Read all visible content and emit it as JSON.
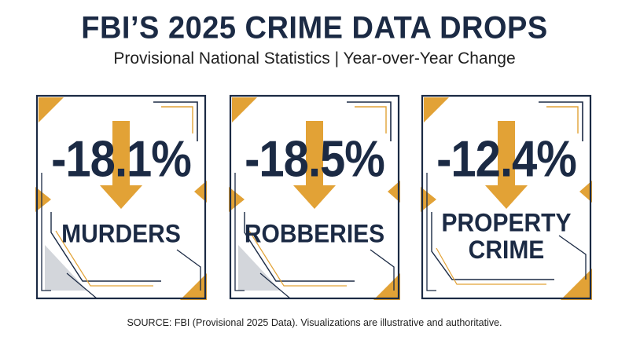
{
  "header": {
    "title": "FBI’S 2025 CRIME DATA DROPS",
    "subtitle": "Provisional National Statistics | Year-over-Year Change"
  },
  "colors": {
    "navy": "#1b2a44",
    "gold": "#e2a236",
    "gray": "#d3d6db"
  },
  "cards": [
    {
      "value": "-18.1%",
      "label_lines": [
        "MURDERS"
      ],
      "icon": "arrow-down-icon"
    },
    {
      "value": "-18.5%",
      "label_lines": [
        "ROBBERIES"
      ],
      "icon": "arrow-down-icon"
    },
    {
      "value": "-12.4%",
      "label_lines": [
        "PROPERTY",
        "CRIME"
      ],
      "icon": "arrow-down-icon"
    }
  ],
  "footer": {
    "source": "SOURCE: FBI (Provisional 2025 Data). Visualizations are illustrative and authoritative."
  }
}
